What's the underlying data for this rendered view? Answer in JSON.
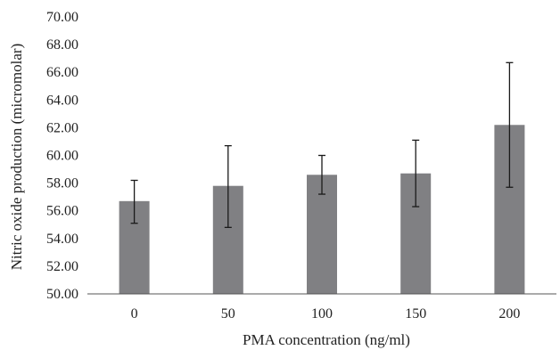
{
  "chart_data": {
    "type": "bar",
    "title": "",
    "xlabel": "PMA concentration (ng/ml)",
    "ylabel": "Nitric oxide production (micromolar)",
    "categories": [
      "0",
      "50",
      "100",
      "150",
      "200"
    ],
    "values": [
      56.7,
      57.8,
      58.6,
      58.7,
      62.2
    ],
    "error_low": [
      55.1,
      54.8,
      57.2,
      56.3,
      57.7
    ],
    "error_high": [
      58.2,
      60.7,
      60.0,
      61.1,
      66.7
    ],
    "ylim": [
      50,
      70
    ],
    "yticks": [
      "50.00",
      "52.00",
      "54.00",
      "56.00",
      "58.00",
      "60.00",
      "62.00",
      "64.00",
      "66.00",
      "68.00",
      "70.00"
    ],
    "grid": false,
    "bar_color": "#808083"
  }
}
